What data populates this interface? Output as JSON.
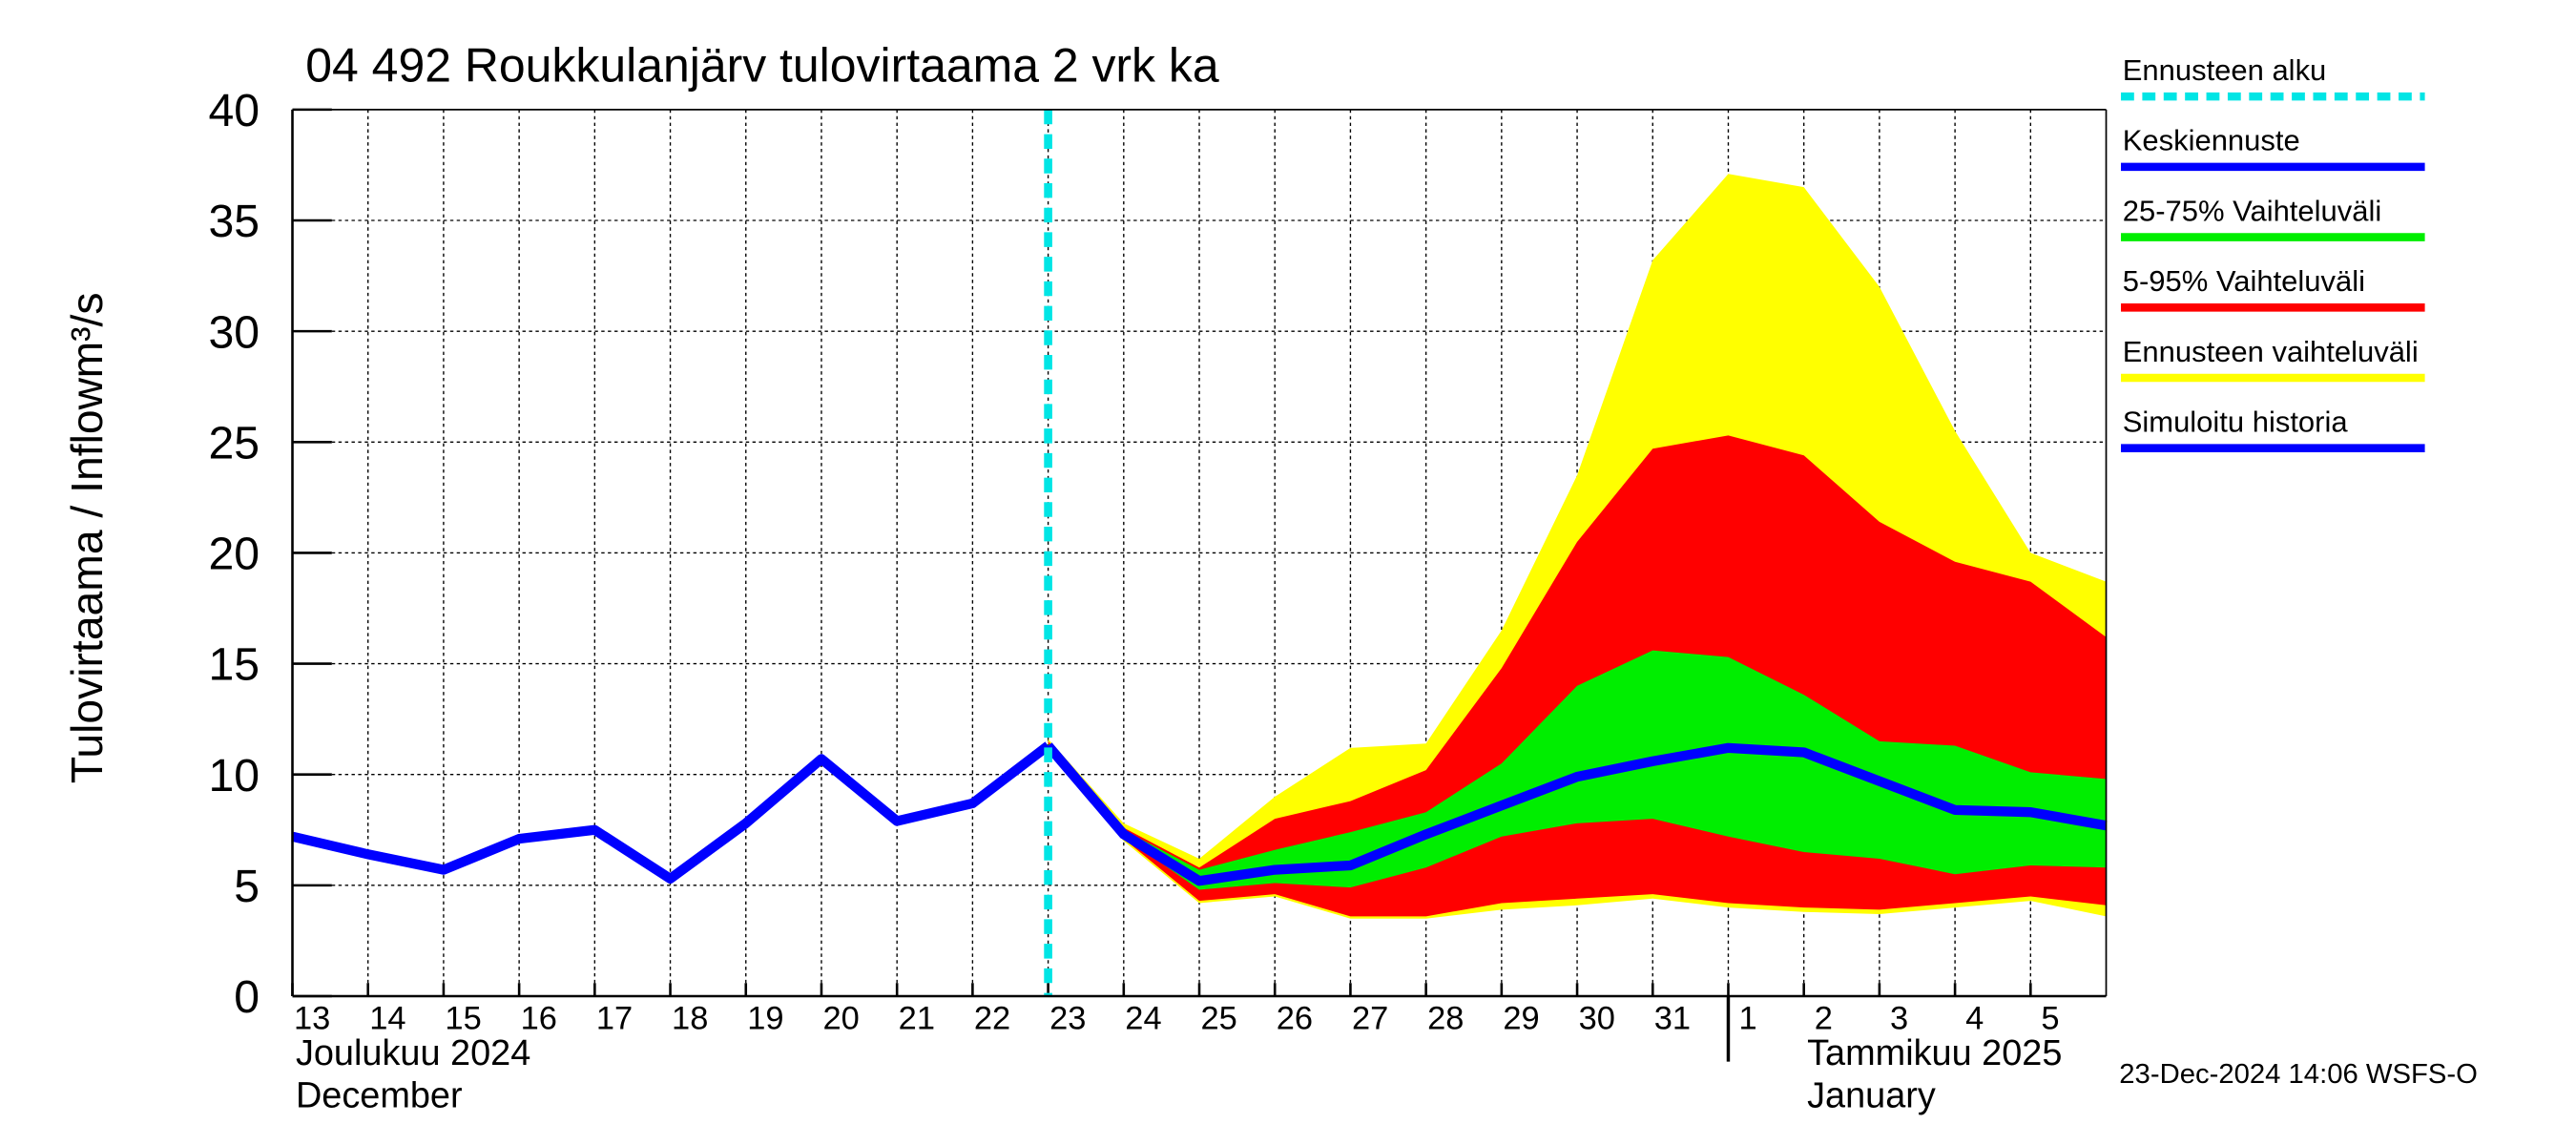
{
  "chart_data": {
    "type": "line",
    "title": "04 492 Roukkulanjärv tulovirtaama 2 vrk ka",
    "y_label": "Tulovirtaama / Inflow",
    "y_unit": "m³/s",
    "x_month_labels": [
      "Joulukuu  2024",
      "December",
      "Tammikuu  2025",
      "January"
    ],
    "timestamp": "23-Dec-2024 14:06 WSFS-O",
    "ylim": [
      0,
      40
    ],
    "yticks": [
      0,
      5,
      10,
      15,
      20,
      25,
      30,
      35,
      40
    ],
    "xlim": [
      "2024-12-13",
      "2025-01-06"
    ],
    "xticks": [
      {
        "value": "2024-12-13",
        "label": "13"
      },
      {
        "value": "2024-12-14",
        "label": "14"
      },
      {
        "value": "2024-12-15",
        "label": "15"
      },
      {
        "value": "2024-12-16",
        "label": "16"
      },
      {
        "value": "2024-12-17",
        "label": "17"
      },
      {
        "value": "2024-12-18",
        "label": "18"
      },
      {
        "value": "2024-12-19",
        "label": "19"
      },
      {
        "value": "2024-12-20",
        "label": "20"
      },
      {
        "value": "2024-12-21",
        "label": "21"
      },
      {
        "value": "2024-12-22",
        "label": "22"
      },
      {
        "value": "2024-12-23",
        "label": "23"
      },
      {
        "value": "2024-12-24",
        "label": "24"
      },
      {
        "value": "2024-12-25",
        "label": "25"
      },
      {
        "value": "2024-12-26",
        "label": "26"
      },
      {
        "value": "2024-12-27",
        "label": "27"
      },
      {
        "value": "2024-12-28",
        "label": "28"
      },
      {
        "value": "2024-12-29",
        "label": "29"
      },
      {
        "value": "2024-12-30",
        "label": "30"
      },
      {
        "value": "2024-12-31",
        "label": "31"
      },
      {
        "value": "2025-01-01",
        "label": "1"
      },
      {
        "value": "2025-01-02",
        "label": "2"
      },
      {
        "value": "2025-01-03",
        "label": "3"
      },
      {
        "value": "2025-01-04",
        "label": "4"
      },
      {
        "value": "2025-01-05",
        "label": "5"
      }
    ],
    "grid": true,
    "legend_position": "right",
    "forecast_start": {
      "name": "Ennusteen alku",
      "x": "2024-12-23",
      "color": "#00e5e5"
    },
    "bands": [
      {
        "name": "Ennusteen vaihteluväli",
        "color": "#ffff00",
        "x": [
          "2024-12-23",
          "2024-12-24",
          "2024-12-25",
          "2024-12-26",
          "2024-12-27",
          "2024-12-28",
          "2024-12-29",
          "2024-12-30",
          "2024-12-31",
          "2025-01-01",
          "2025-01-02",
          "2025-01-03",
          "2025-01-04",
          "2025-01-05",
          "2025-01-06"
        ],
        "upper": [
          11.6,
          7.8,
          6.2,
          9.0,
          11.2,
          11.4,
          16.5,
          23.5,
          33.2,
          37.1,
          36.5,
          32.0,
          25.5,
          20.0,
          18.7
        ],
        "lower": [
          11.1,
          7.0,
          4.2,
          4.5,
          3.5,
          3.5,
          3.9,
          4.1,
          4.4,
          4.0,
          3.8,
          3.7,
          4.0,
          4.3,
          3.6
        ]
      },
      {
        "name": "5-95% Vaihteluväli",
        "color": "#ff0000",
        "x": [
          "2024-12-23",
          "2024-12-24",
          "2024-12-25",
          "2024-12-26",
          "2024-12-27",
          "2024-12-28",
          "2024-12-29",
          "2024-12-30",
          "2024-12-31",
          "2025-01-01",
          "2025-01-02",
          "2025-01-03",
          "2025-01-04",
          "2025-01-05",
          "2025-01-06"
        ],
        "upper": [
          11.5,
          7.6,
          5.8,
          8.0,
          8.8,
          10.2,
          14.8,
          20.5,
          24.7,
          25.3,
          24.4,
          21.4,
          19.6,
          18.7,
          16.2
        ],
        "lower": [
          11.2,
          7.1,
          4.3,
          4.6,
          3.6,
          3.6,
          4.2,
          4.4,
          4.6,
          4.2,
          4.0,
          3.9,
          4.2,
          4.5,
          4.1
        ]
      },
      {
        "name": "25-75% Vaihteluväli",
        "color": "#00ee00",
        "x": [
          "2024-12-23",
          "2024-12-24",
          "2024-12-25",
          "2024-12-26",
          "2024-12-27",
          "2024-12-28",
          "2024-12-29",
          "2024-12-30",
          "2024-12-31",
          "2025-01-01",
          "2025-01-02",
          "2025-01-03",
          "2025-01-04",
          "2025-01-05",
          "2025-01-06"
        ],
        "upper": [
          11.4,
          7.5,
          5.7,
          6.6,
          7.4,
          8.3,
          10.5,
          14.0,
          15.6,
          15.3,
          13.6,
          11.5,
          11.3,
          10.1,
          9.8
        ],
        "lower": [
          11.3,
          7.2,
          4.8,
          5.1,
          4.9,
          5.8,
          7.2,
          7.8,
          8.0,
          7.2,
          6.5,
          6.2,
          5.5,
          5.9,
          5.8
        ]
      }
    ],
    "series": [
      {
        "name": "Keskiennuste",
        "color": "#0000ff",
        "x": [
          "2024-12-23",
          "2024-12-24",
          "2024-12-25",
          "2024-12-26",
          "2024-12-27",
          "2024-12-28",
          "2024-12-29",
          "2024-12-30",
          "2024-12-31",
          "2025-01-01",
          "2025-01-02",
          "2025-01-03",
          "2025-01-04",
          "2025-01-05",
          "2025-01-06"
        ],
        "values": [
          11.3,
          7.3,
          5.2,
          5.7,
          5.9,
          7.3,
          8.6,
          9.9,
          10.6,
          11.2,
          11.0,
          9.7,
          8.4,
          8.3,
          7.7
        ]
      },
      {
        "name": "Simuloitu historia",
        "color": "#0000ff",
        "x": [
          "2024-12-13",
          "2024-12-14",
          "2024-12-15",
          "2024-12-16",
          "2024-12-17",
          "2024-12-18",
          "2024-12-19",
          "2024-12-20",
          "2024-12-21",
          "2024-12-22",
          "2024-12-23"
        ],
        "values": [
          7.2,
          6.4,
          5.7,
          7.1,
          7.5,
          5.3,
          7.8,
          10.7,
          7.9,
          8.7,
          11.3
        ]
      }
    ]
  }
}
